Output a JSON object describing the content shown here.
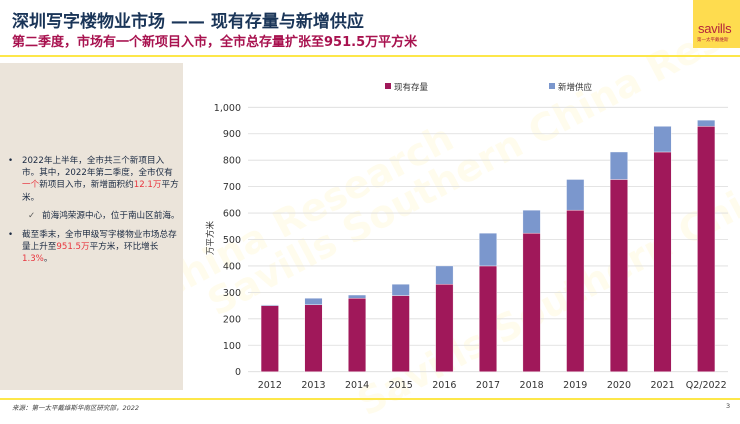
{
  "header": {
    "title": "深圳写字楼物业市场 —— 现有存量与新增供应",
    "subtitle": "第二季度，市场有一个新项目入市，全市总存量扩张至951.5万平方米"
  },
  "logo": {
    "word": "savills",
    "sub": "第一太平戴维斯"
  },
  "bullets": [
    {
      "parts": [
        {
          "text": "2022年上半年，全市共三个新项目入市。其中，2022年第二季度，全市仅有",
          "red": false
        },
        {
          "text": "一个",
          "red": true
        },
        {
          "text": "新项目入市，新增面积约",
          "red": false
        },
        {
          "text": "12.1万",
          "red": true
        },
        {
          "text": "平方米。",
          "red": false
        }
      ],
      "sub": "前海鸿荣源中心，位于南山区前海。"
    },
    {
      "parts": [
        {
          "text": "截至季末，全市甲级写字楼物业市场总存量上升至",
          "red": false
        },
        {
          "text": "951.5万",
          "red": true
        },
        {
          "text": "平方米，环比增长",
          "red": false
        },
        {
          "text": "1.3%",
          "red": true
        },
        {
          "text": "。",
          "red": false
        }
      ]
    }
  ],
  "markers": {
    "bullet": "•",
    "check": "✓"
  },
  "footer": {
    "source": "来源：第一太平戴维斯华南区研究部，2022",
    "page": "3"
  },
  "chart_data": {
    "type": "bar",
    "stacked": true,
    "title": "",
    "xlabel": "",
    "ylabel": "万平方米",
    "ylim": [
      0,
      1000
    ],
    "yticks": [
      0,
      100,
      200,
      300,
      400,
      500,
      600,
      700,
      800,
      900,
      1000
    ],
    "ytick_labels": [
      "0",
      "100",
      "200",
      "300",
      "400",
      "500",
      "600",
      "700",
      "800",
      "900",
      "1,000"
    ],
    "grid": true,
    "legend_position": "top",
    "categories": [
      "2012",
      "2013",
      "2014",
      "2015",
      "2016",
      "2017",
      "2018",
      "2019",
      "2020",
      "2021",
      "Q2/2022"
    ],
    "series": [
      {
        "name": "现有存量",
        "color": "#a0185a",
        "values": [
          250,
          253,
          278,
          288,
          331,
          400,
          524,
          611,
          727,
          831,
          928
        ]
      },
      {
        "name": "新增供应",
        "color": "#7b97cd",
        "values": [
          3,
          25,
          12,
          43,
          69,
          124,
          87,
          116,
          104,
          97,
          23.5
        ]
      }
    ]
  }
}
